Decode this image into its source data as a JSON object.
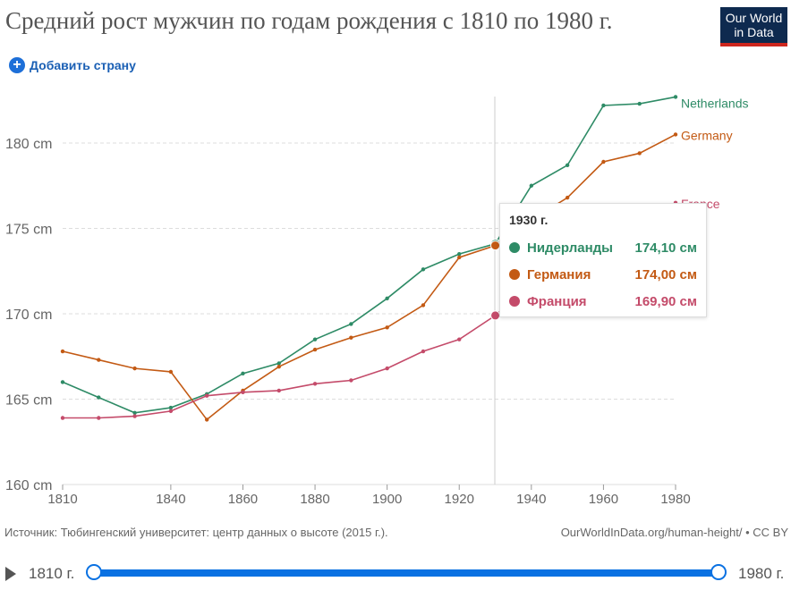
{
  "title": "Средний рост мужчин по годам рождения с 1810 по 1980 г.",
  "logo": "Our World in Data",
  "add_country": "Добавить страну",
  "chart_data": {
    "type": "line",
    "title": "Средний рост мужчин по годам рождения с 1810 по 1980 г.",
    "x": [
      1810,
      1820,
      1830,
      1840,
      1850,
      1860,
      1870,
      1880,
      1890,
      1900,
      1910,
      1920,
      1930,
      1940,
      1950,
      1960,
      1970,
      1980
    ],
    "xticks": [
      "1810",
      "1840",
      "1860",
      "1880",
      "1900",
      "1920",
      "1940",
      "1960",
      "1980"
    ],
    "yticks": [
      "160 cm",
      "165 cm",
      "170 cm",
      "175 cm",
      "180 cm"
    ],
    "ylim": [
      160,
      183
    ],
    "grid": true,
    "series": [
      {
        "name": "Netherlands",
        "color": "#2e8b66",
        "values": [
          166.0,
          165.1,
          164.2,
          164.5,
          165.3,
          166.5,
          167.1,
          168.5,
          169.4,
          170.9,
          172.6,
          173.5,
          174.1,
          177.5,
          178.7,
          182.2,
          182.3,
          182.7
        ]
      },
      {
        "name": "Germany",
        "color": "#c35a14",
        "values": [
          167.8,
          167.3,
          166.8,
          166.6,
          163.8,
          165.5,
          166.9,
          167.9,
          168.6,
          169.2,
          170.5,
          173.3,
          174.0,
          175.5,
          176.8,
          178.9,
          179.4,
          180.5
        ]
      },
      {
        "name": "France",
        "color": "#c44b6a",
        "values": [
          163.9,
          163.9,
          164.0,
          164.3,
          165.2,
          165.4,
          165.5,
          165.9,
          166.1,
          166.8,
          167.8,
          168.5,
          169.9,
          171.7,
          173.2,
          174.9,
          175.1,
          176.5
        ]
      }
    ]
  },
  "tooltip": {
    "year": "1930 г.",
    "rows": [
      {
        "name": "Нидерланды",
        "value": "174,10 см",
        "color": "#2e8b66"
      },
      {
        "name": "Германия",
        "value": "174,00 см",
        "color": "#c35a14"
      },
      {
        "name": "Франция",
        "value": "169,90 см",
        "color": "#c44b6a"
      }
    ]
  },
  "source": "Источник: Тюбингенский университет: центр данных о высоте (2015 г.).",
  "url": "OurWorldInData.org/human-height/ • CC BY",
  "timeline": {
    "start": "1810 г.",
    "end": "1980 г."
  }
}
